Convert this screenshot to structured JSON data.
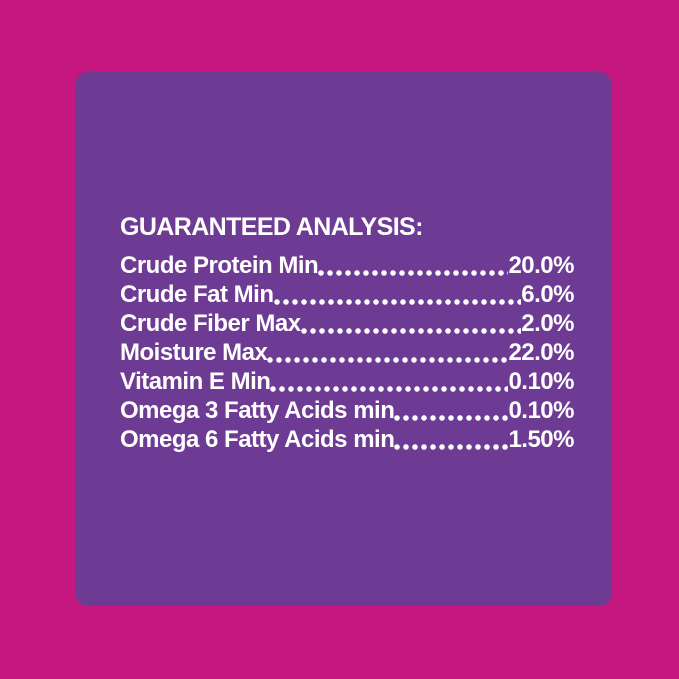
{
  "panel": {
    "title": "GUARANTEED ANALYSIS:",
    "rows": [
      {
        "label": "Crude Protein Min",
        "value": "20.0%"
      },
      {
        "label": "Crude Fat Min",
        "value": "6.0%"
      },
      {
        "label": "Crude Fiber Max",
        "value": "2.0%"
      },
      {
        "label": "Moisture Max",
        "value": "22.0%"
      },
      {
        "label": "Vitamin E Min",
        "value": "0.10%"
      },
      {
        "label": "Omega 3 Fatty Acids min",
        "value": "0.10%"
      },
      {
        "label": "Omega 6 Fatty Acids min",
        "value": "1.50%"
      }
    ]
  },
  "colors": {
    "background": "#C6177E",
    "panel": "#6E3B94",
    "text": "#FFFFFF"
  }
}
